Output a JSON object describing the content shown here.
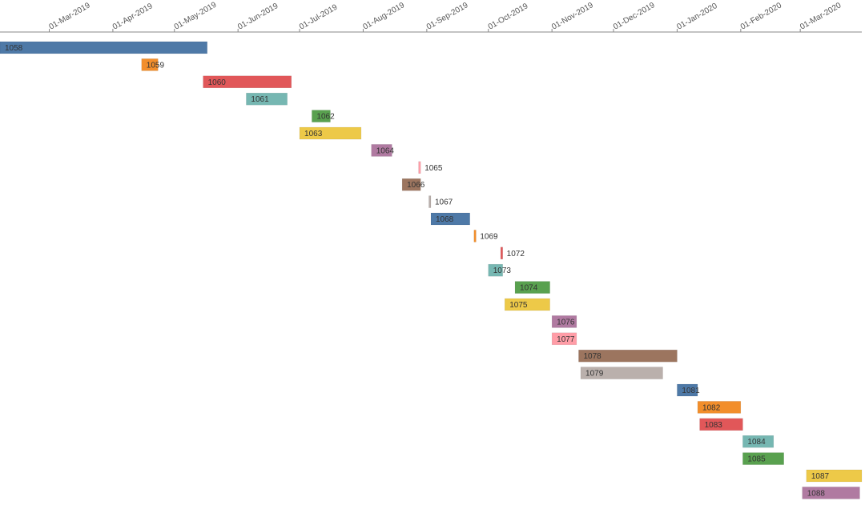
{
  "chart_data": {
    "type": "gantt",
    "x_axis": {
      "position": "top",
      "range": [
        "2019-02-05",
        "2020-03-31"
      ],
      "ticks": [
        "01-Mar-2019",
        "01-Apr-2019",
        "01-May-2019",
        "01-Jun-2019",
        "01-Jul-2019",
        "01-Aug-2019",
        "01-Sep-2019",
        "01-Oct-2019",
        "01-Nov-2019",
        "01-Dec-2019",
        "01-Jan-2020",
        "01-Feb-2020",
        "01-Mar-2020"
      ]
    },
    "tasks": [
      {
        "label": "1058",
        "start": "2019-02-05",
        "end": "2019-05-17",
        "color": "#4e79a7"
      },
      {
        "label": "1059",
        "start": "2019-04-15",
        "end": "2019-04-23",
        "color": "#f28e2b"
      },
      {
        "label": "1060",
        "start": "2019-05-15",
        "end": "2019-06-27",
        "color": "#e15759"
      },
      {
        "label": "1061",
        "start": "2019-06-05",
        "end": "2019-06-25",
        "color": "#76b7b2"
      },
      {
        "label": "1062",
        "start": "2019-07-07",
        "end": "2019-07-16",
        "color": "#59a14f"
      },
      {
        "label": "1063",
        "start": "2019-07-01",
        "end": "2019-07-31",
        "color": "#edc948"
      },
      {
        "label": "1064",
        "start": "2019-08-05",
        "end": "2019-08-15",
        "color": "#b07aa1"
      },
      {
        "label": "1065",
        "start": "2019-08-28",
        "end": "2019-08-29",
        "color": "#ff9da7"
      },
      {
        "label": "1066",
        "start": "2019-08-20",
        "end": "2019-08-29",
        "color": "#9c755f"
      },
      {
        "label": "1067",
        "start": "2019-09-02",
        "end": "2019-09-03",
        "color": "#bab0ac"
      },
      {
        "label": "1068",
        "start": "2019-09-03",
        "end": "2019-09-22",
        "color": "#4e79a7"
      },
      {
        "label": "1069",
        "start": "2019-09-24",
        "end": "2019-09-25",
        "color": "#f28e2b"
      },
      {
        "label": "1072",
        "start": "2019-10-07",
        "end": "2019-10-08",
        "color": "#e15759"
      },
      {
        "label": "1073",
        "start": "2019-10-01",
        "end": "2019-10-08",
        "color": "#76b7b2"
      },
      {
        "label": "1074",
        "start": "2019-10-14",
        "end": "2019-10-31",
        "color": "#59a14f"
      },
      {
        "label": "1075",
        "start": "2019-10-09",
        "end": "2019-10-31",
        "color": "#edc948"
      },
      {
        "label": "1076",
        "start": "2019-11-01",
        "end": "2019-11-13",
        "color": "#b07aa1"
      },
      {
        "label": "1077",
        "start": "2019-11-01",
        "end": "2019-11-13",
        "color": "#ff9da7"
      },
      {
        "label": "1078",
        "start": "2019-11-14",
        "end": "2020-01-01",
        "color": "#9c755f"
      },
      {
        "label": "1079",
        "start": "2019-11-15",
        "end": "2019-12-25",
        "color": "#bab0ac"
      },
      {
        "label": "1081",
        "start": "2020-01-01",
        "end": "2020-01-11",
        "color": "#4e79a7"
      },
      {
        "label": "1082",
        "start": "2020-01-11",
        "end": "2020-02-01",
        "color": "#f28e2b"
      },
      {
        "label": "1083",
        "start": "2020-01-12",
        "end": "2020-02-02",
        "color": "#e15759"
      },
      {
        "label": "1084",
        "start": "2020-02-02",
        "end": "2020-02-17",
        "color": "#76b7b2"
      },
      {
        "label": "1085",
        "start": "2020-02-02",
        "end": "2020-02-22",
        "color": "#59a14f"
      },
      {
        "label": "1087",
        "start": "2020-03-04",
        "end": "2020-03-31",
        "color": "#edc948"
      },
      {
        "label": "1088",
        "start": "2020-03-02",
        "end": "2020-03-30",
        "color": "#b07aa1"
      }
    ]
  }
}
